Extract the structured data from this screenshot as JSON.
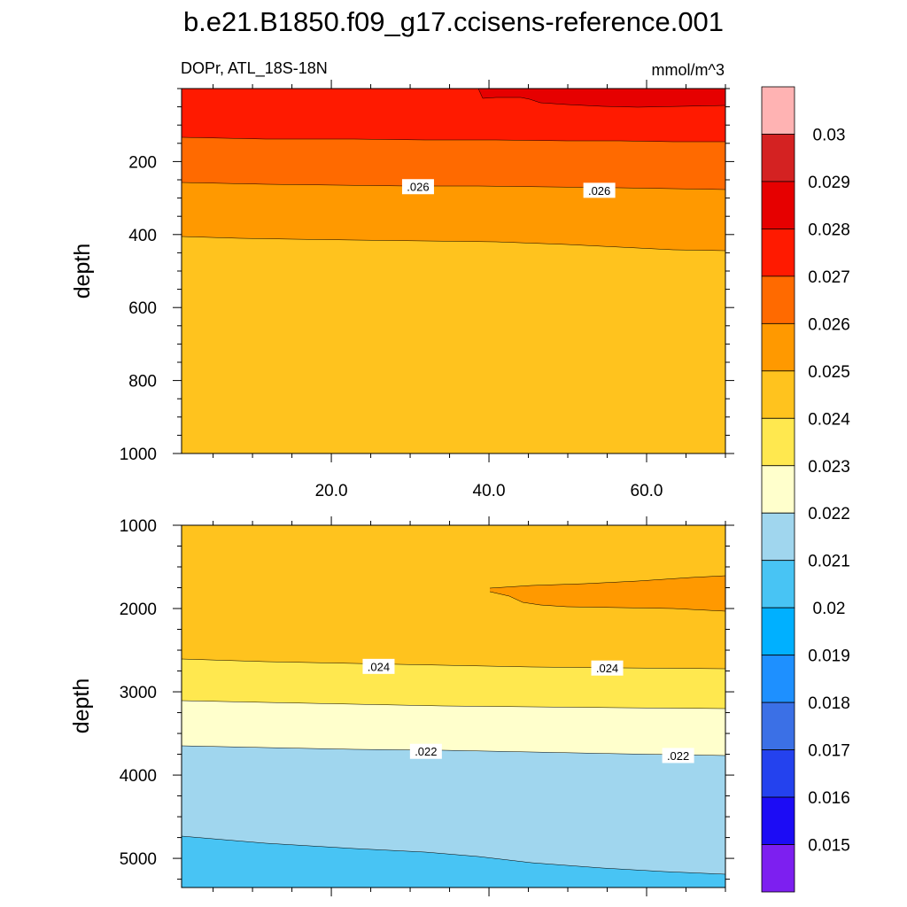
{
  "title": "b.e21.B1850.f09_g17.ccisens-reference.001",
  "subtitle_left": "DOPr, ATL_18S-18N",
  "units": "mmol/m^3",
  "chart_data": [
    {
      "type": "contour",
      "panel": "top",
      "ylabel": "depth",
      "y_reversed": true,
      "xlim": [
        1,
        70
      ],
      "ylim": [
        1000,
        0
      ],
      "xticks": [
        "20.0",
        "40.0",
        "60.0"
      ],
      "xtick_values": [
        20,
        40,
        60
      ],
      "yticks": [
        "200",
        "400",
        "600",
        "800",
        "1000"
      ],
      "ytick_values": [
        200,
        400,
        600,
        800,
        1000
      ],
      "contour_labels": [
        {
          "text": ".026",
          "x": 31,
          "depth": 270
        },
        {
          "text": ".026",
          "x": 54,
          "depth": 280
        }
      ]
    },
    {
      "type": "contour",
      "panel": "bottom",
      "ylabel": "depth",
      "y_reversed": true,
      "xlim": [
        1,
        70
      ],
      "ylim": [
        5350,
        1000
      ],
      "yticks": [
        "1000",
        "2000",
        "3000",
        "4000",
        "5000"
      ],
      "ytick_values": [
        1000,
        2000,
        3000,
        4000,
        5000
      ],
      "contour_labels": [
        {
          "text": ".024",
          "x": 26,
          "depth": 2700
        },
        {
          "text": ".024",
          "x": 55,
          "depth": 2720
        },
        {
          "text": ".022",
          "x": 32,
          "depth": 3720
        },
        {
          "text": ".022",
          "x": 64,
          "depth": 3770
        }
      ]
    }
  ],
  "colorbar": {
    "labels": [
      "0.03",
      "0.029",
      "0.028",
      "0.027",
      "0.026",
      "0.025",
      "0.024",
      "0.023",
      "0.022",
      "0.021",
      "0.02",
      "0.019",
      "0.018",
      "0.017",
      "0.016",
      "0.015"
    ],
    "colors": [
      "#FFB3B3",
      "#D42222",
      "#E60000",
      "#FF1A00",
      "#FF6A00",
      "#FF9900",
      "#FFC31E",
      "#FFE84F",
      "#FFFFCC",
      "#A0D6EE",
      "#48C4F4",
      "#00B0FF",
      "#1E90FF",
      "#3B70E6",
      "#2442EE",
      "#1C0CF5",
      "#7D1FF0"
    ]
  }
}
